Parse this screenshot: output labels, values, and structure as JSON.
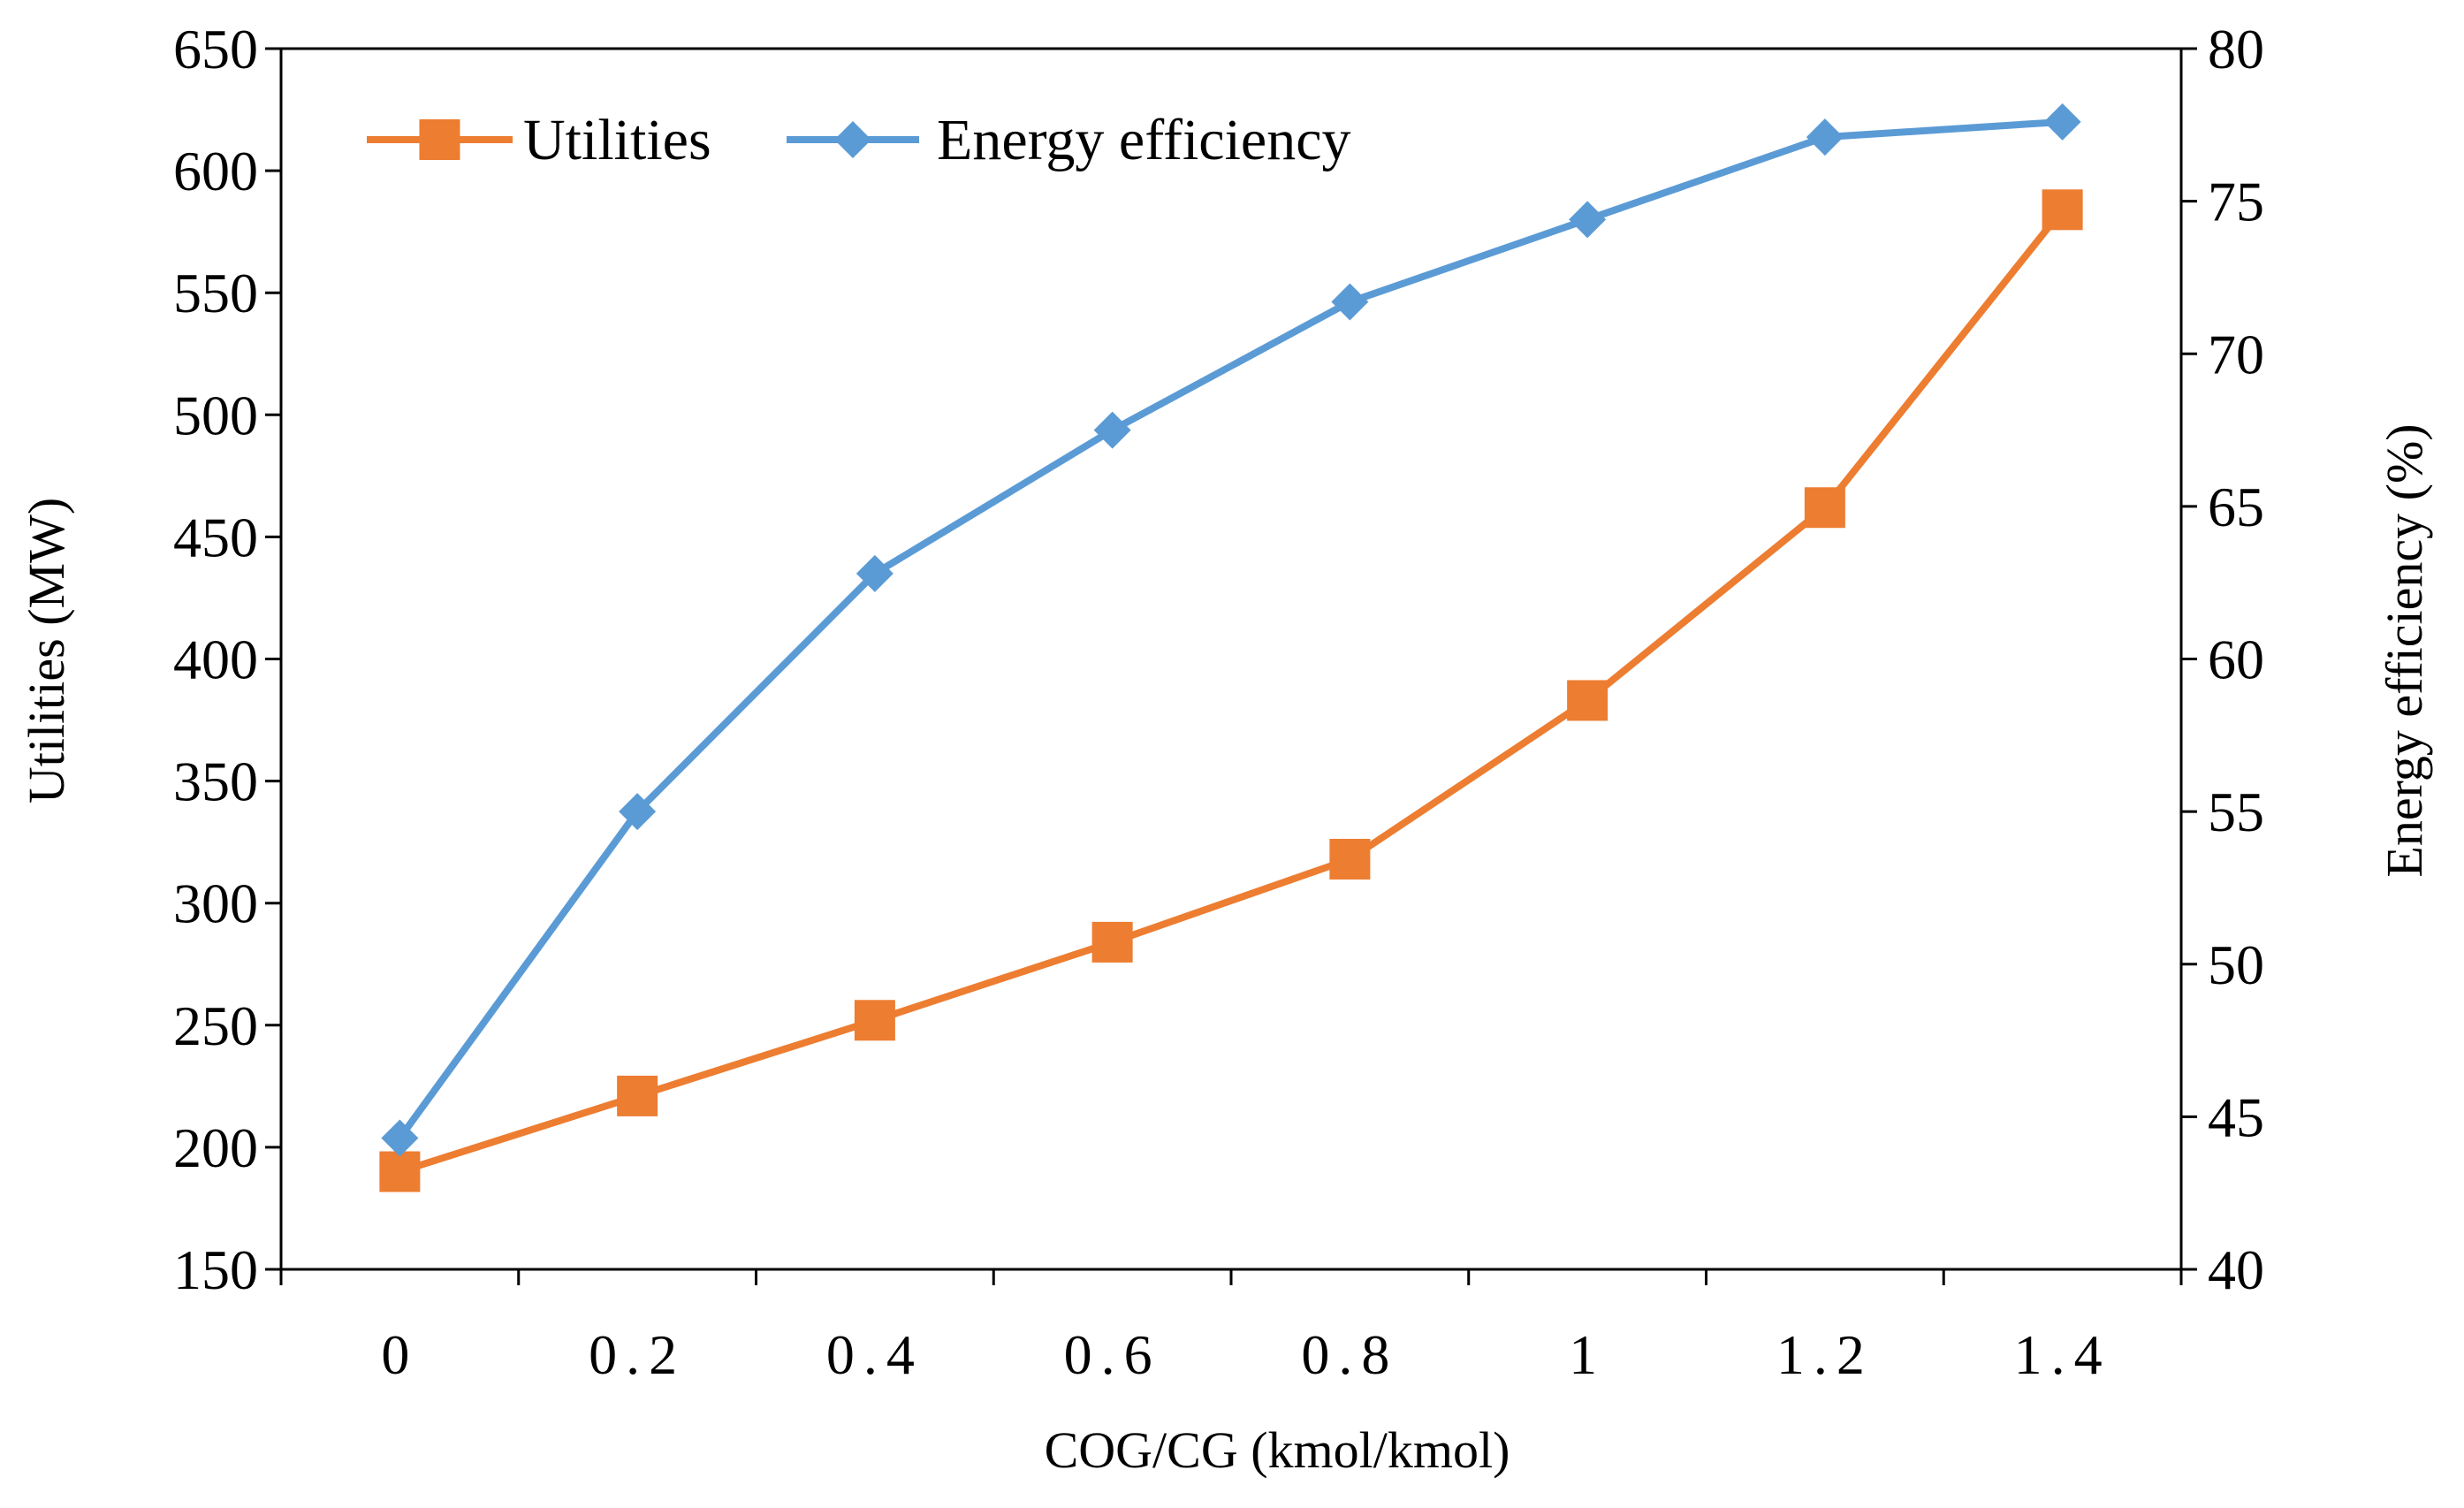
{
  "chart_data": {
    "type": "line",
    "title": "",
    "xlabel": "COG/CG (kmol/kmol)",
    "ylabel": "Utilities  (MW)",
    "y2label": "Energy efficiency  (%)",
    "categories": [
      "0",
      "0.2",
      "0.4",
      "0.6",
      "0.8",
      "1",
      "1.2",
      "1.4"
    ],
    "x": [
      0,
      0.2,
      0.4,
      0.6,
      0.8,
      1,
      1.2,
      1.4
    ],
    "ylim": [
      150,
      650
    ],
    "y2lim": [
      40,
      80
    ],
    "yticks": [
      "150",
      "200",
      "250",
      "300",
      "350",
      "400",
      "450",
      "500",
      "550",
      "600",
      "650"
    ],
    "y2ticks": [
      "40",
      "45",
      "50",
      "55",
      "60",
      "65",
      "70",
      "75",
      "80"
    ],
    "legend_position": "top-left",
    "grid": false,
    "series": [
      {
        "name": "Utilities",
        "axis": "left",
        "marker": "square",
        "color": "#ED7D31",
        "values": [
          190,
          221,
          252,
          284,
          318,
          383,
          462,
          584
        ]
      },
      {
        "name": "Energy efficiency",
        "axis": "right",
        "marker": "diamond",
        "color": "#5B9BD5",
        "values": [
          44.3,
          55.0,
          62.8,
          67.5,
          71.7,
          74.4,
          77.1,
          77.6
        ]
      }
    ]
  }
}
